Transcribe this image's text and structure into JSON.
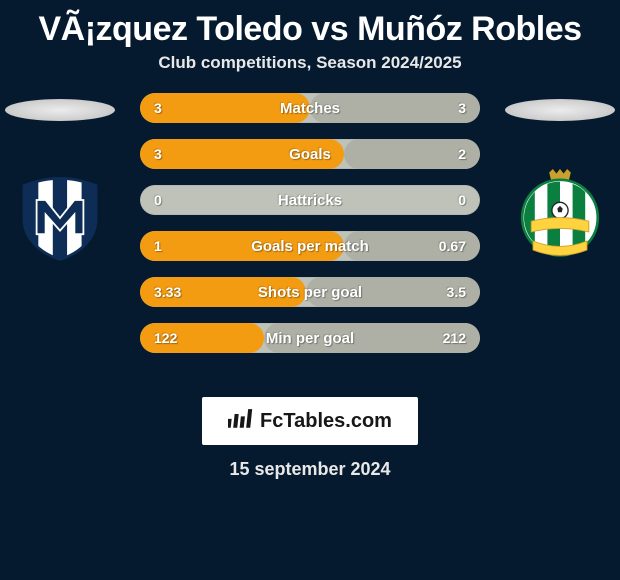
{
  "title": {
    "player1": "VÃ¡zquez Toledo",
    "vs": "vs",
    "player2": "Muñóz Robles"
  },
  "subtitle": "Club competitions, Season 2024/2025",
  "colors": {
    "background": "#051a2e",
    "bar_track": "#bfc2b8",
    "bar_left": "#f39c12",
    "bar_right": "#aeb0a5",
    "text_on_bar": "#ffffff",
    "brand_box_bg": "#ffffff"
  },
  "stats": [
    {
      "label": "Matches",
      "left_value": "3",
      "right_value": "3",
      "left_num": 3,
      "right_num": 3
    },
    {
      "label": "Goals",
      "left_value": "3",
      "right_value": "2",
      "left_num": 3,
      "right_num": 2
    },
    {
      "label": "Hattricks",
      "left_value": "0",
      "right_value": "0",
      "left_num": 0,
      "right_num": 0
    },
    {
      "label": "Goals per match",
      "left_value": "1",
      "right_value": "0.67",
      "left_num": 1,
      "right_num": 0.67
    },
    {
      "label": "Shots per goal",
      "left_value": "3.33",
      "right_value": "3.5",
      "left_num": 3.33,
      "right_num": 3.5
    },
    {
      "label": "Min per goal",
      "left_value": "122",
      "right_value": "212",
      "left_num": 122,
      "right_num": 212
    }
  ],
  "bar_style": {
    "height": 30,
    "radius": 15,
    "font_size": 14,
    "font_weight": 800,
    "gap": 16
  },
  "brand": "FcTables.com",
  "date": "15 september 2024",
  "crests": {
    "left": {
      "name": "monterrey-crest",
      "shield_bg": "#ffffff",
      "stripes": [
        "#0d2d56",
        "#ffffff",
        "#0d2d56",
        "#ffffff",
        "#0d2d56"
      ],
      "m_color": "#0d2d56"
    },
    "right": {
      "name": "santos-laguna-crest",
      "circle_bg": "#ffffff",
      "stripe_green": "#0a7f3f",
      "banner": "#ffd23f",
      "crown": "#caa02a",
      "ball": "#222222"
    }
  }
}
